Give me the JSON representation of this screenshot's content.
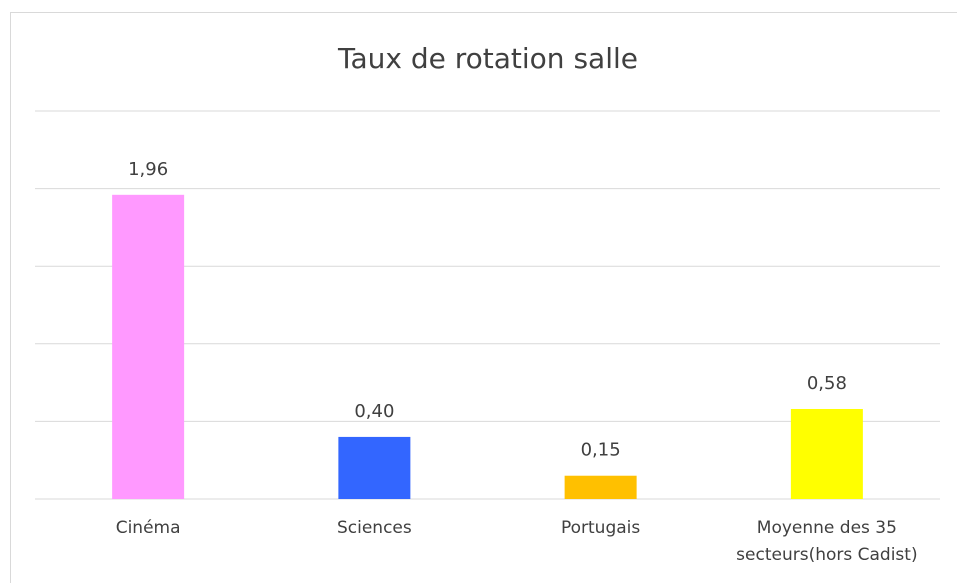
{
  "chart_data": {
    "type": "bar",
    "title": "Taux de rotation salle",
    "categories": [
      "Cinéma",
      "Sciences",
      "Portugais",
      "Moyenne des 35 secteurs(hors Cadist)"
    ],
    "values": [
      1.96,
      0.4,
      0.15,
      0.58
    ],
    "value_labels": [
      "1,96",
      "0,40",
      "0,15",
      "0,58"
    ],
    "colors": [
      "#ff99ff",
      "#3366ff",
      "#ffc000",
      "#ffff00"
    ],
    "ylim": [
      0,
      2.5
    ],
    "yticks": [
      0,
      0.5,
      1,
      1.5,
      2,
      2.5
    ],
    "grid": true
  }
}
